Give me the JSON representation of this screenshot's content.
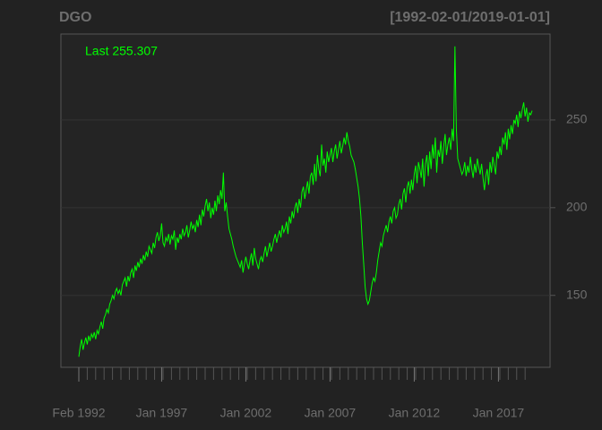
{
  "chart_data": {
    "type": "line",
    "title": "DGO",
    "subtitle": "[1992-02-01/2019-01-01]",
    "annotation": "Last 255.307",
    "x": [
      "1992-02",
      "1992-03",
      "1992-04",
      "1992-05",
      "1992-06",
      "1992-07",
      "1992-08",
      "1992-09",
      "1992-10",
      "1992-11",
      "1992-12",
      "1993-01",
      "1993-02",
      "1993-03",
      "1993-04",
      "1993-05",
      "1993-06",
      "1993-07",
      "1993-08",
      "1993-09",
      "1993-10",
      "1993-11",
      "1993-12",
      "1994-01",
      "1994-02",
      "1994-03",
      "1994-04",
      "1994-05",
      "1994-06",
      "1994-07",
      "1994-08",
      "1994-09",
      "1994-10",
      "1994-11",
      "1994-12",
      "1995-01",
      "1995-02",
      "1995-03",
      "1995-04",
      "1995-05",
      "1995-06",
      "1995-07",
      "1995-08",
      "1995-09",
      "1995-10",
      "1995-11",
      "1995-12",
      "1996-01",
      "1996-02",
      "1996-03",
      "1996-04",
      "1996-05",
      "1996-06",
      "1996-07",
      "1996-08",
      "1996-09",
      "1996-10",
      "1996-11",
      "1996-12",
      "1997-01",
      "1997-02",
      "1997-03",
      "1997-04",
      "1997-05",
      "1997-06",
      "1997-07",
      "1997-08",
      "1997-09",
      "1997-10",
      "1997-11",
      "1997-12",
      "1998-01",
      "1998-02",
      "1998-03",
      "1998-04",
      "1998-05",
      "1998-06",
      "1998-07",
      "1998-08",
      "1998-09",
      "1998-10",
      "1998-11",
      "1998-12",
      "1999-01",
      "1999-02",
      "1999-03",
      "1999-04",
      "1999-05",
      "1999-06",
      "1999-07",
      "1999-08",
      "1999-09",
      "1999-10",
      "1999-11",
      "1999-12",
      "2000-01",
      "2000-02",
      "2000-03",
      "2000-04",
      "2000-05",
      "2000-06",
      "2000-07",
      "2000-08",
      "2000-09",
      "2000-10",
      "2000-11",
      "2000-12",
      "2001-01",
      "2001-02",
      "2001-03",
      "2001-04",
      "2001-05",
      "2001-06",
      "2001-07",
      "2001-08",
      "2001-09",
      "2001-10",
      "2001-11",
      "2001-12",
      "2002-01",
      "2002-02",
      "2002-03",
      "2002-04",
      "2002-05",
      "2002-06",
      "2002-07",
      "2002-08",
      "2002-09",
      "2002-10",
      "2002-11",
      "2002-12",
      "2003-01",
      "2003-02",
      "2003-03",
      "2003-04",
      "2003-05",
      "2003-06",
      "2003-07",
      "2003-08",
      "2003-09",
      "2003-10",
      "2003-11",
      "2003-12",
      "2004-01",
      "2004-02",
      "2004-03",
      "2004-04",
      "2004-05",
      "2004-06",
      "2004-07",
      "2004-08",
      "2004-09",
      "2004-10",
      "2004-11",
      "2004-12",
      "2005-01",
      "2005-02",
      "2005-03",
      "2005-04",
      "2005-05",
      "2005-06",
      "2005-07",
      "2005-08",
      "2005-09",
      "2005-10",
      "2005-11",
      "2005-12",
      "2006-01",
      "2006-02",
      "2006-03",
      "2006-04",
      "2006-05",
      "2006-06",
      "2006-07",
      "2006-08",
      "2006-09",
      "2006-10",
      "2006-11",
      "2006-12",
      "2007-01",
      "2007-02",
      "2007-03",
      "2007-04",
      "2007-05",
      "2007-06",
      "2007-07",
      "2007-08",
      "2007-09",
      "2007-10",
      "2007-11",
      "2007-12",
      "2008-01",
      "2008-02",
      "2008-03",
      "2008-04",
      "2008-05",
      "2008-06",
      "2008-07",
      "2008-08",
      "2008-09",
      "2008-10",
      "2008-11",
      "2008-12",
      "2009-01",
      "2009-02",
      "2009-03",
      "2009-04",
      "2009-05",
      "2009-06",
      "2009-07",
      "2009-08",
      "2009-09",
      "2009-10",
      "2009-11",
      "2009-12",
      "2010-01",
      "2010-02",
      "2010-03",
      "2010-04",
      "2010-05",
      "2010-06",
      "2010-07",
      "2010-08",
      "2010-09",
      "2010-10",
      "2010-11",
      "2010-12",
      "2011-01",
      "2011-02",
      "2011-03",
      "2011-04",
      "2011-05",
      "2011-06",
      "2011-07",
      "2011-08",
      "2011-09",
      "2011-10",
      "2011-11",
      "2011-12",
      "2012-01",
      "2012-02",
      "2012-03",
      "2012-04",
      "2012-05",
      "2012-06",
      "2012-07",
      "2012-08",
      "2012-09",
      "2012-10",
      "2012-11",
      "2012-12",
      "2013-01",
      "2013-02",
      "2013-03",
      "2013-04",
      "2013-05",
      "2013-06",
      "2013-07",
      "2013-08",
      "2013-09",
      "2013-10",
      "2013-11",
      "2013-12",
      "2014-01",
      "2014-02",
      "2014-03",
      "2014-04",
      "2014-05",
      "2014-06",
      "2014-07",
      "2014-08",
      "2014-09",
      "2014-10",
      "2014-11",
      "2014-12",
      "2015-01",
      "2015-02",
      "2015-03",
      "2015-04",
      "2015-05",
      "2015-06",
      "2015-07",
      "2015-08",
      "2015-09",
      "2015-10",
      "2015-11",
      "2015-12",
      "2016-01",
      "2016-02",
      "2016-03",
      "2016-04",
      "2016-05",
      "2016-06",
      "2016-07",
      "2016-08",
      "2016-09",
      "2016-10",
      "2016-11",
      "2016-12",
      "2017-01",
      "2017-02",
      "2017-03",
      "2017-04",
      "2017-05",
      "2017-06",
      "2017-07",
      "2017-08",
      "2017-09",
      "2017-10",
      "2017-11",
      "2017-12",
      "2018-01",
      "2018-02",
      "2018-03",
      "2018-04",
      "2018-05",
      "2018-06",
      "2018-07",
      "2018-08",
      "2018-09",
      "2018-10",
      "2018-11",
      "2018-12",
      "2019-01"
    ],
    "series": [
      {
        "name": "DGO",
        "color": "#00ff00",
        "values": [
          115,
          121,
          125,
          119,
          123,
          126,
          122,
          127,
          124,
          128,
          126,
          129,
          125,
          130,
          128,
          132,
          135,
          131,
          137,
          139,
          142,
          140,
          145,
          147,
          150,
          148,
          152,
          154,
          151,
          153,
          150,
          156,
          158,
          160,
          155,
          161,
          158,
          163,
          165,
          160,
          167,
          164,
          169,
          166,
          171,
          168,
          173,
          170,
          175,
          172,
          178,
          176,
          174,
          180,
          177,
          183,
          186,
          181,
          184,
          191,
          180,
          178,
          183,
          181,
          185,
          179,
          184,
          182,
          187,
          176,
          183,
          180,
          185,
          182,
          188,
          184,
          186,
          190,
          183,
          187,
          192,
          188,
          190,
          186,
          193,
          189,
          196,
          190,
          199,
          195,
          201,
          205,
          198,
          203,
          194,
          200,
          196,
          204,
          198,
          207,
          202,
          210,
          205,
          220,
          198,
          203,
          195,
          188,
          185,
          182,
          178,
          175,
          172,
          170,
          168,
          166,
          170,
          163,
          168,
          172,
          168,
          165,
          170,
          174,
          167,
          177,
          171,
          168,
          165,
          170,
          172,
          169,
          174,
          178,
          172,
          176,
          180,
          175,
          178,
          182,
          185,
          180,
          184,
          187,
          183,
          190,
          186,
          188,
          192,
          185,
          195,
          191,
          198,
          194,
          200,
          203,
          197,
          205,
          200,
          209,
          212,
          205,
          210,
          215,
          208,
          218,
          220,
          213,
          225,
          215,
          230,
          222,
          218,
          236,
          224,
          228,
          220,
          232,
          226,
          230,
          234,
          226,
          232,
          236,
          228,
          233,
          238,
          231,
          235,
          240,
          236,
          243,
          238,
          235,
          230,
          228,
          226,
          222,
          217,
          212,
          205,
          195,
          180,
          168,
          155,
          148,
          145,
          147,
          152,
          157,
          160,
          158,
          163,
          170,
          175,
          180,
          178,
          184,
          187,
          190,
          186,
          192,
          195,
          191,
          198,
          200,
          194,
          196,
          202,
          205,
          199,
          208,
          211,
          203,
          212,
          215,
          208,
          216,
          210,
          219,
          224,
          214,
          226,
          222,
          217,
          228,
          212,
          225,
          230,
          218,
          232,
          222,
          236,
          228,
          240,
          220,
          233,
          229,
          238,
          225,
          235,
          242,
          230,
          236,
          240,
          233,
          245,
          238,
          292,
          245,
          228,
          225,
          222,
          219,
          221,
          226,
          218,
          224,
          220,
          229,
          222,
          217,
          225,
          220,
          228,
          223,
          219,
          225,
          217,
          210,
          218,
          222,
          213,
          226,
          220,
          229,
          224,
          219,
          232,
          228,
          235,
          230,
          240,
          236,
          243,
          233,
          245,
          239,
          247,
          242,
          250,
          248,
          253,
          246,
          255,
          251,
          256,
          260,
          252,
          257,
          249,
          254,
          253,
          255.307
        ]
      }
    ],
    "xticks": [
      {
        "value": "1992-02",
        "label": "Feb 1992"
      },
      {
        "value": "1997-01",
        "label": "Jan 1997"
      },
      {
        "value": "2002-01",
        "label": "Jan 2002"
      },
      {
        "value": "2007-01",
        "label": "Jan 2007"
      },
      {
        "value": "2012-01",
        "label": "Jan 2012"
      },
      {
        "value": "2017-01",
        "label": "Jan 2017"
      }
    ],
    "ylim": [
      109,
      299
    ],
    "yticks": [
      150,
      200,
      250
    ],
    "grid": true
  }
}
